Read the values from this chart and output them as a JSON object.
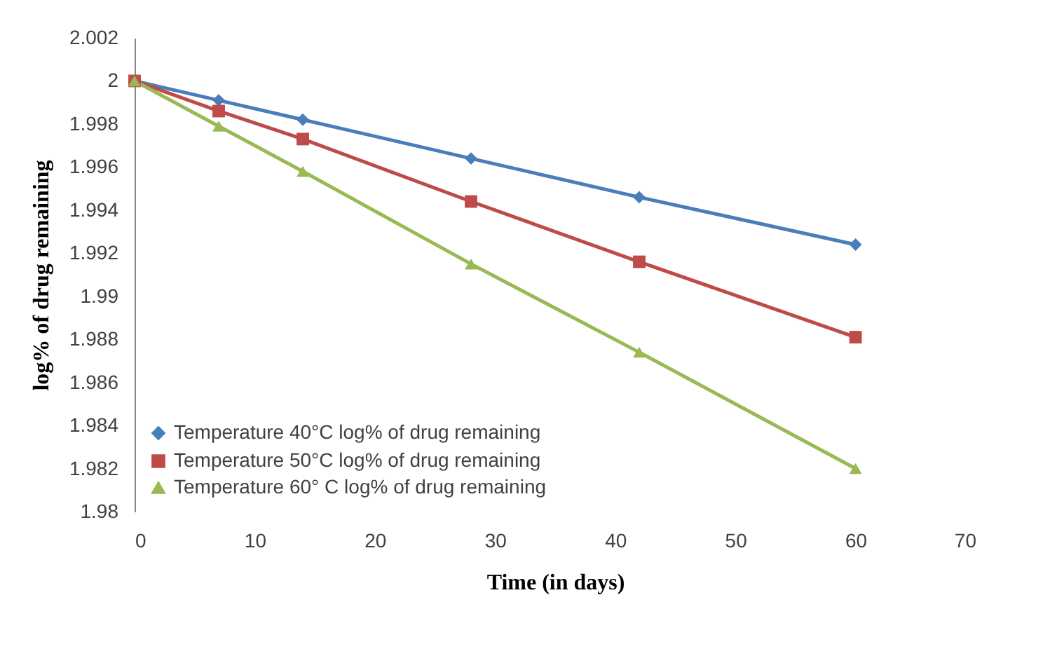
{
  "chart_data": {
    "type": "line",
    "xlabel": "Time (in days)",
    "ylabel": "log% of drug remaining",
    "x": [
      0,
      7,
      14,
      28,
      42,
      60
    ],
    "series": [
      {
        "name": "Temperature 40°C log% of drug remaining",
        "color": "#4a7ebb",
        "marker": "diamond",
        "values": [
          2.0,
          1.9991,
          1.9982,
          1.9964,
          1.9946,
          1.9924
        ]
      },
      {
        "name": "Temperature 50°C log% of drug remaining",
        "color": "#be4b48",
        "marker": "square",
        "values": [
          2.0,
          1.9986,
          1.9973,
          1.9944,
          1.9916,
          1.9881
        ]
      },
      {
        "name": "Temperature 60° C log% of drug remaining",
        "color": "#98b954",
        "marker": "triangle",
        "values": [
          2.0,
          1.9979,
          1.9958,
          1.9915,
          1.9874,
          1.982
        ]
      }
    ],
    "xlim": [
      0,
      70
    ],
    "xticks": [
      0,
      10,
      20,
      30,
      40,
      50,
      60,
      70
    ],
    "ylim": [
      1.98,
      2.002
    ],
    "yticks": [
      1.98,
      1.982,
      1.984,
      1.986,
      1.988,
      1.99,
      1.992,
      1.994,
      1.996,
      1.998,
      2,
      2.002
    ],
    "grid": false,
    "legend": "bottom left",
    "line_style": "solid"
  }
}
